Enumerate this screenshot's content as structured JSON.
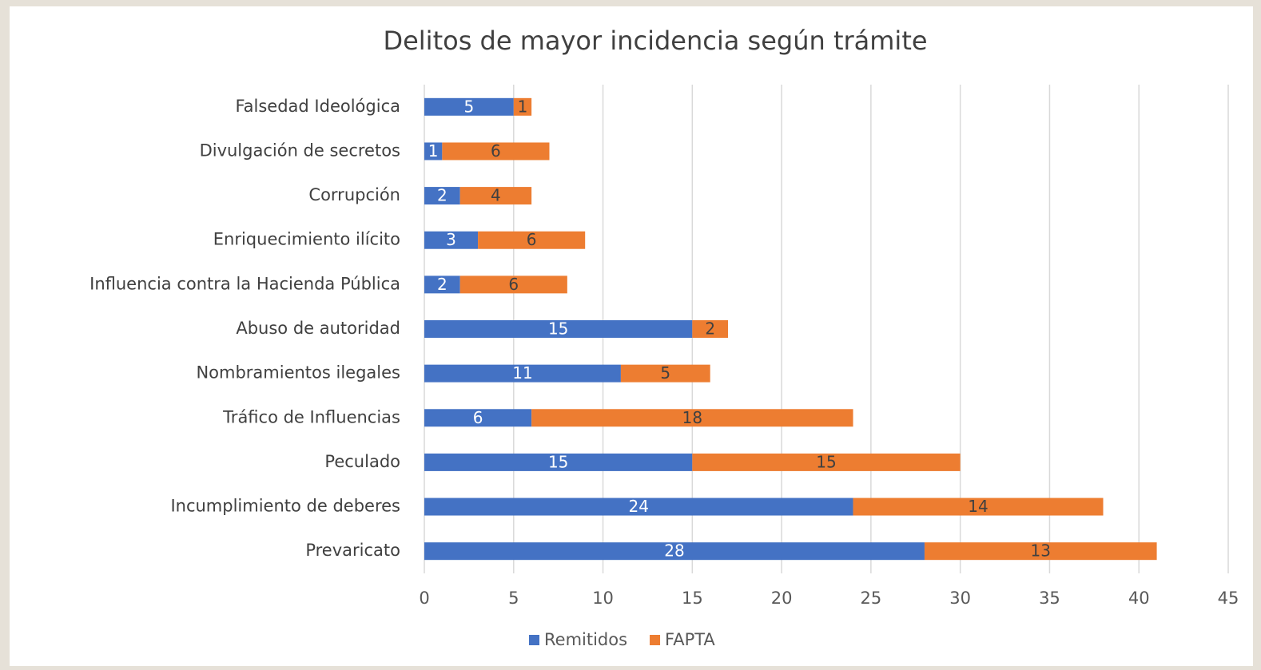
{
  "chart_data": {
    "type": "stacked-bar-horizontal",
    "title": "Delitos de mayor incidencia según trámite",
    "categories": [
      "Falsedad Ideológica",
      "Divulgación de secretos",
      "Corrupción",
      "Enriquecimiento ilícito",
      "Influencia contra la Hacienda Pública",
      "Abuso de autoridad",
      "Nombramientos ilegales",
      "Tráfico de Influencias",
      "Peculado",
      "Incumplimiento de deberes",
      "Prevaricato"
    ],
    "series": [
      {
        "name": "Remitidos",
        "color": "#4472c4",
        "label_color": "#ffffff",
        "values": [
          5,
          1,
          2,
          3,
          2,
          15,
          11,
          6,
          15,
          24,
          28
        ]
      },
      {
        "name": "FAPTA",
        "color": "#ed7d31",
        "label_color": "#404040",
        "values": [
          1,
          6,
          4,
          6,
          6,
          2,
          5,
          18,
          15,
          14,
          13
        ]
      }
    ],
    "xlim": [
      0,
      45
    ],
    "xticks": [
      0,
      5,
      10,
      15,
      20,
      25,
      30,
      35,
      40,
      45
    ],
    "grid": true,
    "legend": "bottom"
  }
}
